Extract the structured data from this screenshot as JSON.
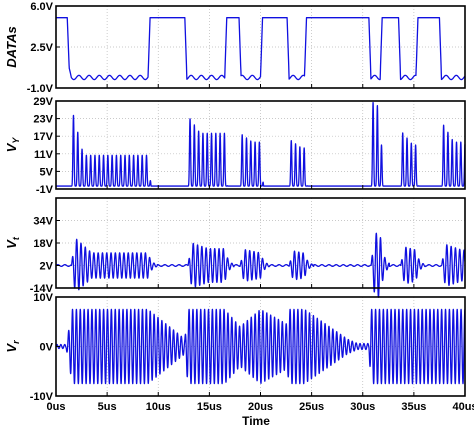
{
  "chart_data": [
    {
      "type": "line",
      "ylabel": "DATAs",
      "ylim": [
        -1.0,
        6.0
      ],
      "yticks": [
        "6.0V",
        "2.5V",
        "-1.0V"
      ],
      "ytick_values": [
        6.0,
        2.5,
        -1.0
      ],
      "grid": true,
      "color": "#1010e0",
      "series": [
        {
          "x": [
            0,
            1.1,
            1.3,
            1.5,
            9.0,
            9.2,
            12.6,
            12.8,
            16.5,
            16.7,
            17.9,
            18.1,
            20.0,
            20.2,
            22.6,
            22.8,
            24.3,
            24.5,
            30.6,
            30.8,
            31.7,
            31.9,
            33.5,
            33.7,
            35.2,
            35.4,
            37.5,
            37.7,
            40
          ],
          "y": [
            5.0,
            5.0,
            0.5,
            -0.1,
            -0.1,
            5.0,
            5.0,
            -0.1,
            -0.1,
            5.0,
            5.0,
            -0.1,
            -0.1,
            5.0,
            5.0,
            -0.1,
            -0.1,
            5.0,
            5.0,
            -0.1,
            -0.1,
            5.0,
            5.0,
            -0.1,
            -0.1,
            5.0,
            5.0,
            -0.1,
            -0.1
          ]
        }
      ]
    },
    {
      "type": "line",
      "ylabel": "V",
      "ylabel_sub": "Y",
      "ylim": [
        -1,
        29
      ],
      "yticks": [
        "29V",
        "23V",
        "17V",
        "11V",
        "5V",
        "-1V"
      ],
      "ytick_values": [
        29,
        23,
        17,
        11,
        5,
        -1
      ],
      "grid": true,
      "color": "#1010e0",
      "baseline": 0,
      "waveform": "pulse-bursts",
      "bursts": [
        {
          "start": 1.5,
          "end": 9.0,
          "peak": 27,
          "settle": 10.5
        },
        {
          "start": 12.9,
          "end": 16.5,
          "peak": 24,
          "settle": 18
        },
        {
          "start": 18.0,
          "end": 20.0,
          "peak": 18,
          "settle": 15
        },
        {
          "start": 22.8,
          "end": 24.3,
          "peak": 16,
          "settle": 13
        },
        {
          "start": 30.8,
          "end": 31.7,
          "peak": 29,
          "settle": 26
        },
        {
          "start": 33.7,
          "end": 35.2,
          "peak": 19,
          "settle": 14
        },
        {
          "start": 37.7,
          "end": 40.0,
          "peak": 22,
          "settle": 15
        }
      ]
    },
    {
      "type": "line",
      "ylabel": "V",
      "ylabel_sub": "t",
      "ylim": [
        -14,
        50
      ],
      "yticks": [
        "34V",
        "18V",
        "2V",
        "-14V"
      ],
      "ytick_values": [
        34,
        18,
        2,
        -14
      ],
      "grid": true,
      "color": "#1010e0",
      "baseline": 2,
      "waveform": "oscillation-bursts",
      "bursts": [
        {
          "start": 1.5,
          "end": 9.0,
          "amp": 22,
          "settle": 9
        },
        {
          "start": 12.9,
          "end": 16.5,
          "amp": 17,
          "settle": 12
        },
        {
          "start": 18.0,
          "end": 20.0,
          "amp": 12,
          "settle": 9
        },
        {
          "start": 22.8,
          "end": 24.3,
          "amp": 11,
          "settle": 8
        },
        {
          "start": 30.8,
          "end": 31.7,
          "amp": 24,
          "settle": 20
        },
        {
          "start": 33.7,
          "end": 35.2,
          "amp": 14,
          "settle": 10
        },
        {
          "start": 37.7,
          "end": 40.0,
          "amp": 16,
          "settle": 11
        }
      ]
    },
    {
      "type": "line",
      "ylabel": "V",
      "ylabel_sub": "r",
      "ylim": [
        -10,
        10
      ],
      "yticks": [
        "10V",
        "0V",
        "-10V"
      ],
      "ytick_values": [
        10,
        0,
        -10
      ],
      "grid": true,
      "color": "#1010e0",
      "baseline": 0,
      "waveform": "rf-carrier",
      "envelope": {
        "x": [
          0,
          1.0,
          1.6,
          9.0,
          12.6,
          12.9,
          16.5,
          18.0,
          20.0,
          22.6,
          22.8,
          24.3,
          28.5,
          29.5,
          30.6,
          30.8,
          40.0
        ],
        "y": [
          0.4,
          0.4,
          7.5,
          7.5,
          1.5,
          7.5,
          7.5,
          4.0,
          7.5,
          4.5,
          7.5,
          7.5,
          1.5,
          0.6,
          0.6,
          7.5,
          7.5
        ]
      },
      "attack": 0.3
    }
  ],
  "x_axis": {
    "label": "Time",
    "ticks": [
      "0us",
      "5us",
      "10us",
      "15us",
      "20us",
      "25us",
      "30us",
      "35us",
      "40us"
    ],
    "tick_values": [
      0,
      5,
      10,
      15,
      20,
      25,
      30,
      35,
      40
    ],
    "range": [
      0,
      40
    ]
  }
}
